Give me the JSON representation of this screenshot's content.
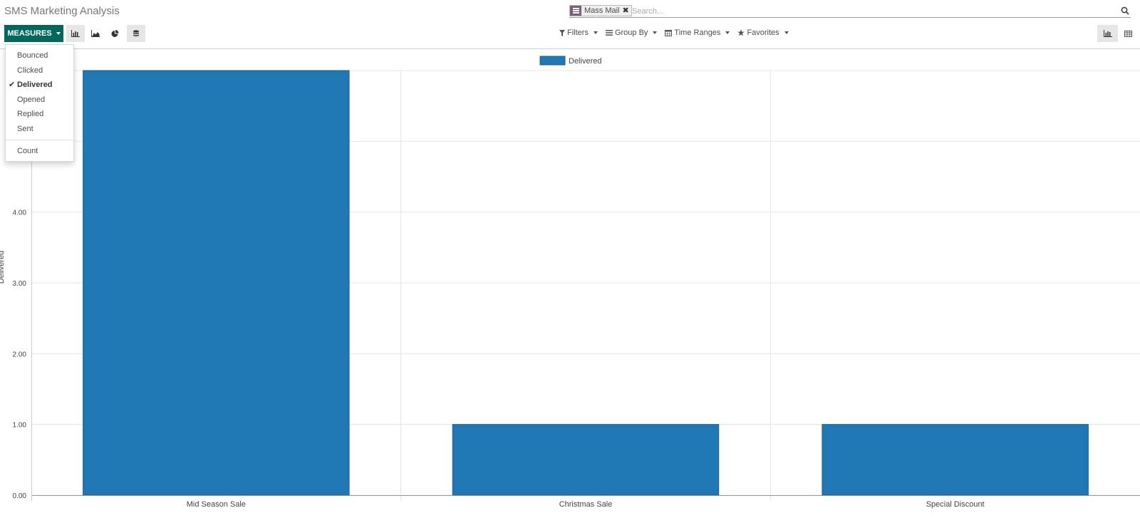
{
  "title": "SMS Marketing Analysis",
  "search": {
    "facet_value": "Mass Mail",
    "placeholder": "Search..."
  },
  "toolbar": {
    "measures_label": "MEASURES"
  },
  "search_options": [
    {
      "label": "Filters",
      "icon": "filter-icon"
    },
    {
      "label": "Group By",
      "icon": "list-icon"
    },
    {
      "label": "Time Ranges",
      "icon": "calendar-icon"
    },
    {
      "label": "Favorites",
      "icon": "star-icon"
    }
  ],
  "measures_menu": {
    "items": [
      {
        "label": "Bounced",
        "checked": false
      },
      {
        "label": "Clicked",
        "checked": false
      },
      {
        "label": "Delivered",
        "checked": true
      },
      {
        "label": "Opened",
        "checked": false
      },
      {
        "label": "Replied",
        "checked": false
      },
      {
        "label": "Sent",
        "checked": false
      }
    ],
    "count_label": "Count"
  },
  "colors": {
    "accent": "#00695c",
    "bar": "#1f77b4",
    "facet": "#7c5e7b"
  },
  "chart_data": {
    "type": "bar",
    "categories": [
      "Mid Season Sale",
      "Christmas Sale",
      "Special Discount"
    ],
    "series": [
      {
        "name": "Delivered",
        "values": [
          6,
          1,
          1
        ]
      }
    ],
    "ylabel": "Delivered",
    "yticks": [
      "0.00",
      "1.00",
      "2.00",
      "3.00",
      "4.00"
    ],
    "ylim": [
      0,
      6
    ],
    "grid": true,
    "legend_position": "top-center"
  }
}
